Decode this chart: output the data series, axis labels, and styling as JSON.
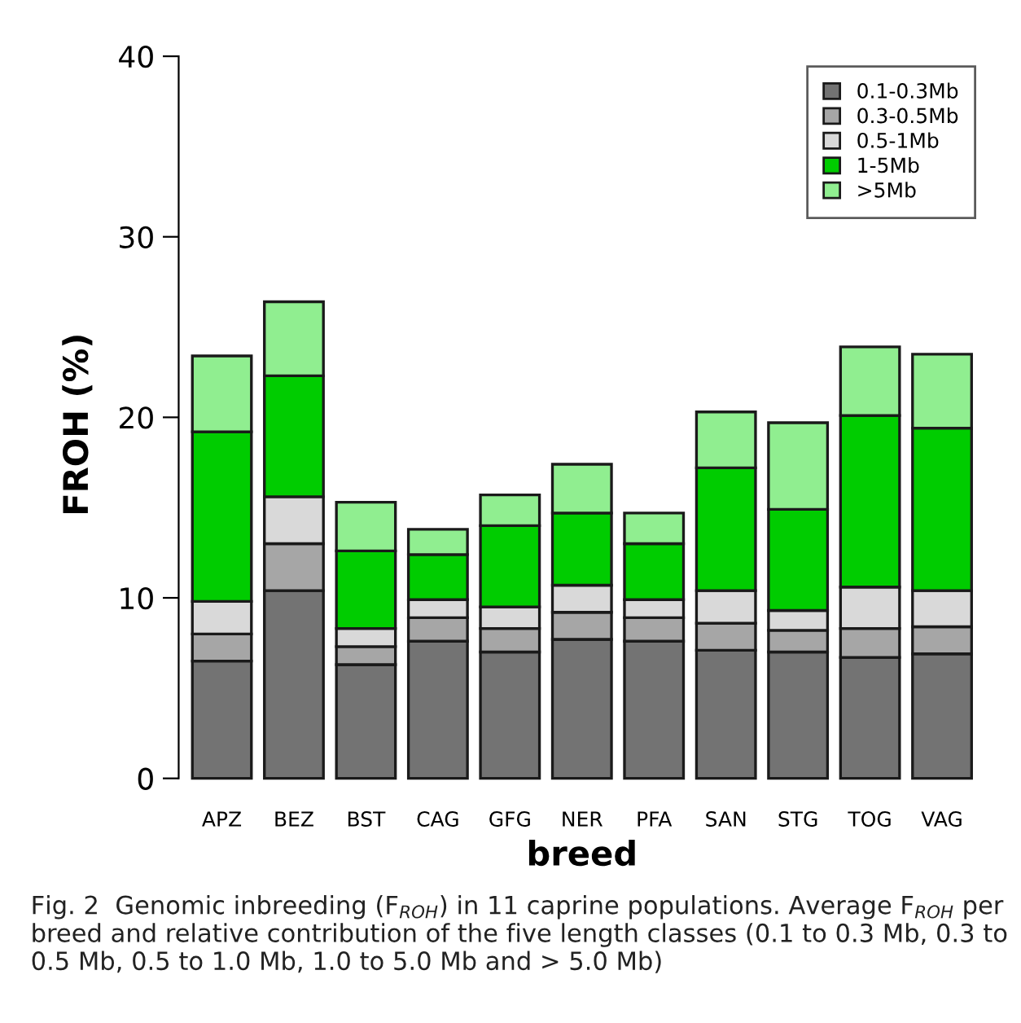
{
  "chart_data": {
    "type": "bar",
    "stacked": true,
    "xlabel": "breed",
    "ylabel": "FROH (%)",
    "categories": [
      "APZ",
      "BEZ",
      "BST",
      "CAG",
      "GFG",
      "NER",
      "PFA",
      "SAN",
      "STG",
      "TOG",
      "VAG"
    ],
    "series": [
      {
        "name": "0.1-0.3Mb",
        "color": "#737373",
        "values": [
          6.5,
          10.4,
          6.3,
          7.6,
          7.0,
          7.7,
          7.6,
          7.1,
          7.0,
          6.7,
          6.9
        ]
      },
      {
        "name": "0.3-0.5Mb",
        "color": "#a6a6a6",
        "values": [
          1.5,
          2.6,
          1.0,
          1.3,
          1.3,
          1.5,
          1.3,
          1.5,
          1.2,
          1.6,
          1.5
        ]
      },
      {
        "name": "0.5-1Mb",
        "color": "#d9d9d9",
        "values": [
          1.8,
          2.6,
          1.0,
          1.0,
          1.2,
          1.5,
          1.0,
          1.8,
          1.1,
          2.3,
          2.0
        ]
      },
      {
        "name": "1-5Mb",
        "color": "#00cc00",
        "values": [
          9.4,
          6.7,
          4.3,
          2.5,
          4.5,
          4.0,
          3.1,
          6.8,
          5.6,
          9.5,
          9.0
        ]
      },
      {
        "name": ">5Mb",
        "color": "#90ee90",
        "values": [
          4.2,
          4.1,
          2.7,
          1.4,
          1.7,
          2.7,
          1.7,
          3.1,
          4.8,
          3.8,
          4.1
        ]
      }
    ],
    "ylim": [
      0,
      40
    ],
    "yticks": [
      0,
      10,
      20,
      30,
      40
    ],
    "grid": false,
    "legend": "top right",
    "annotations": [
      "Fig. 2  Genomic inbreeding (F$_{ROH}$) in 11 caprine populations. Average F$_{ROH}$ per breed and relative contribution of the five length classes (0.1 to 0.3 Mb, 0.3 to 0.5 Mb, 0.5 to 1.0 Mb, 1.0 to 5.0 Mb and > 5.0 Mb)"
    ]
  }
}
